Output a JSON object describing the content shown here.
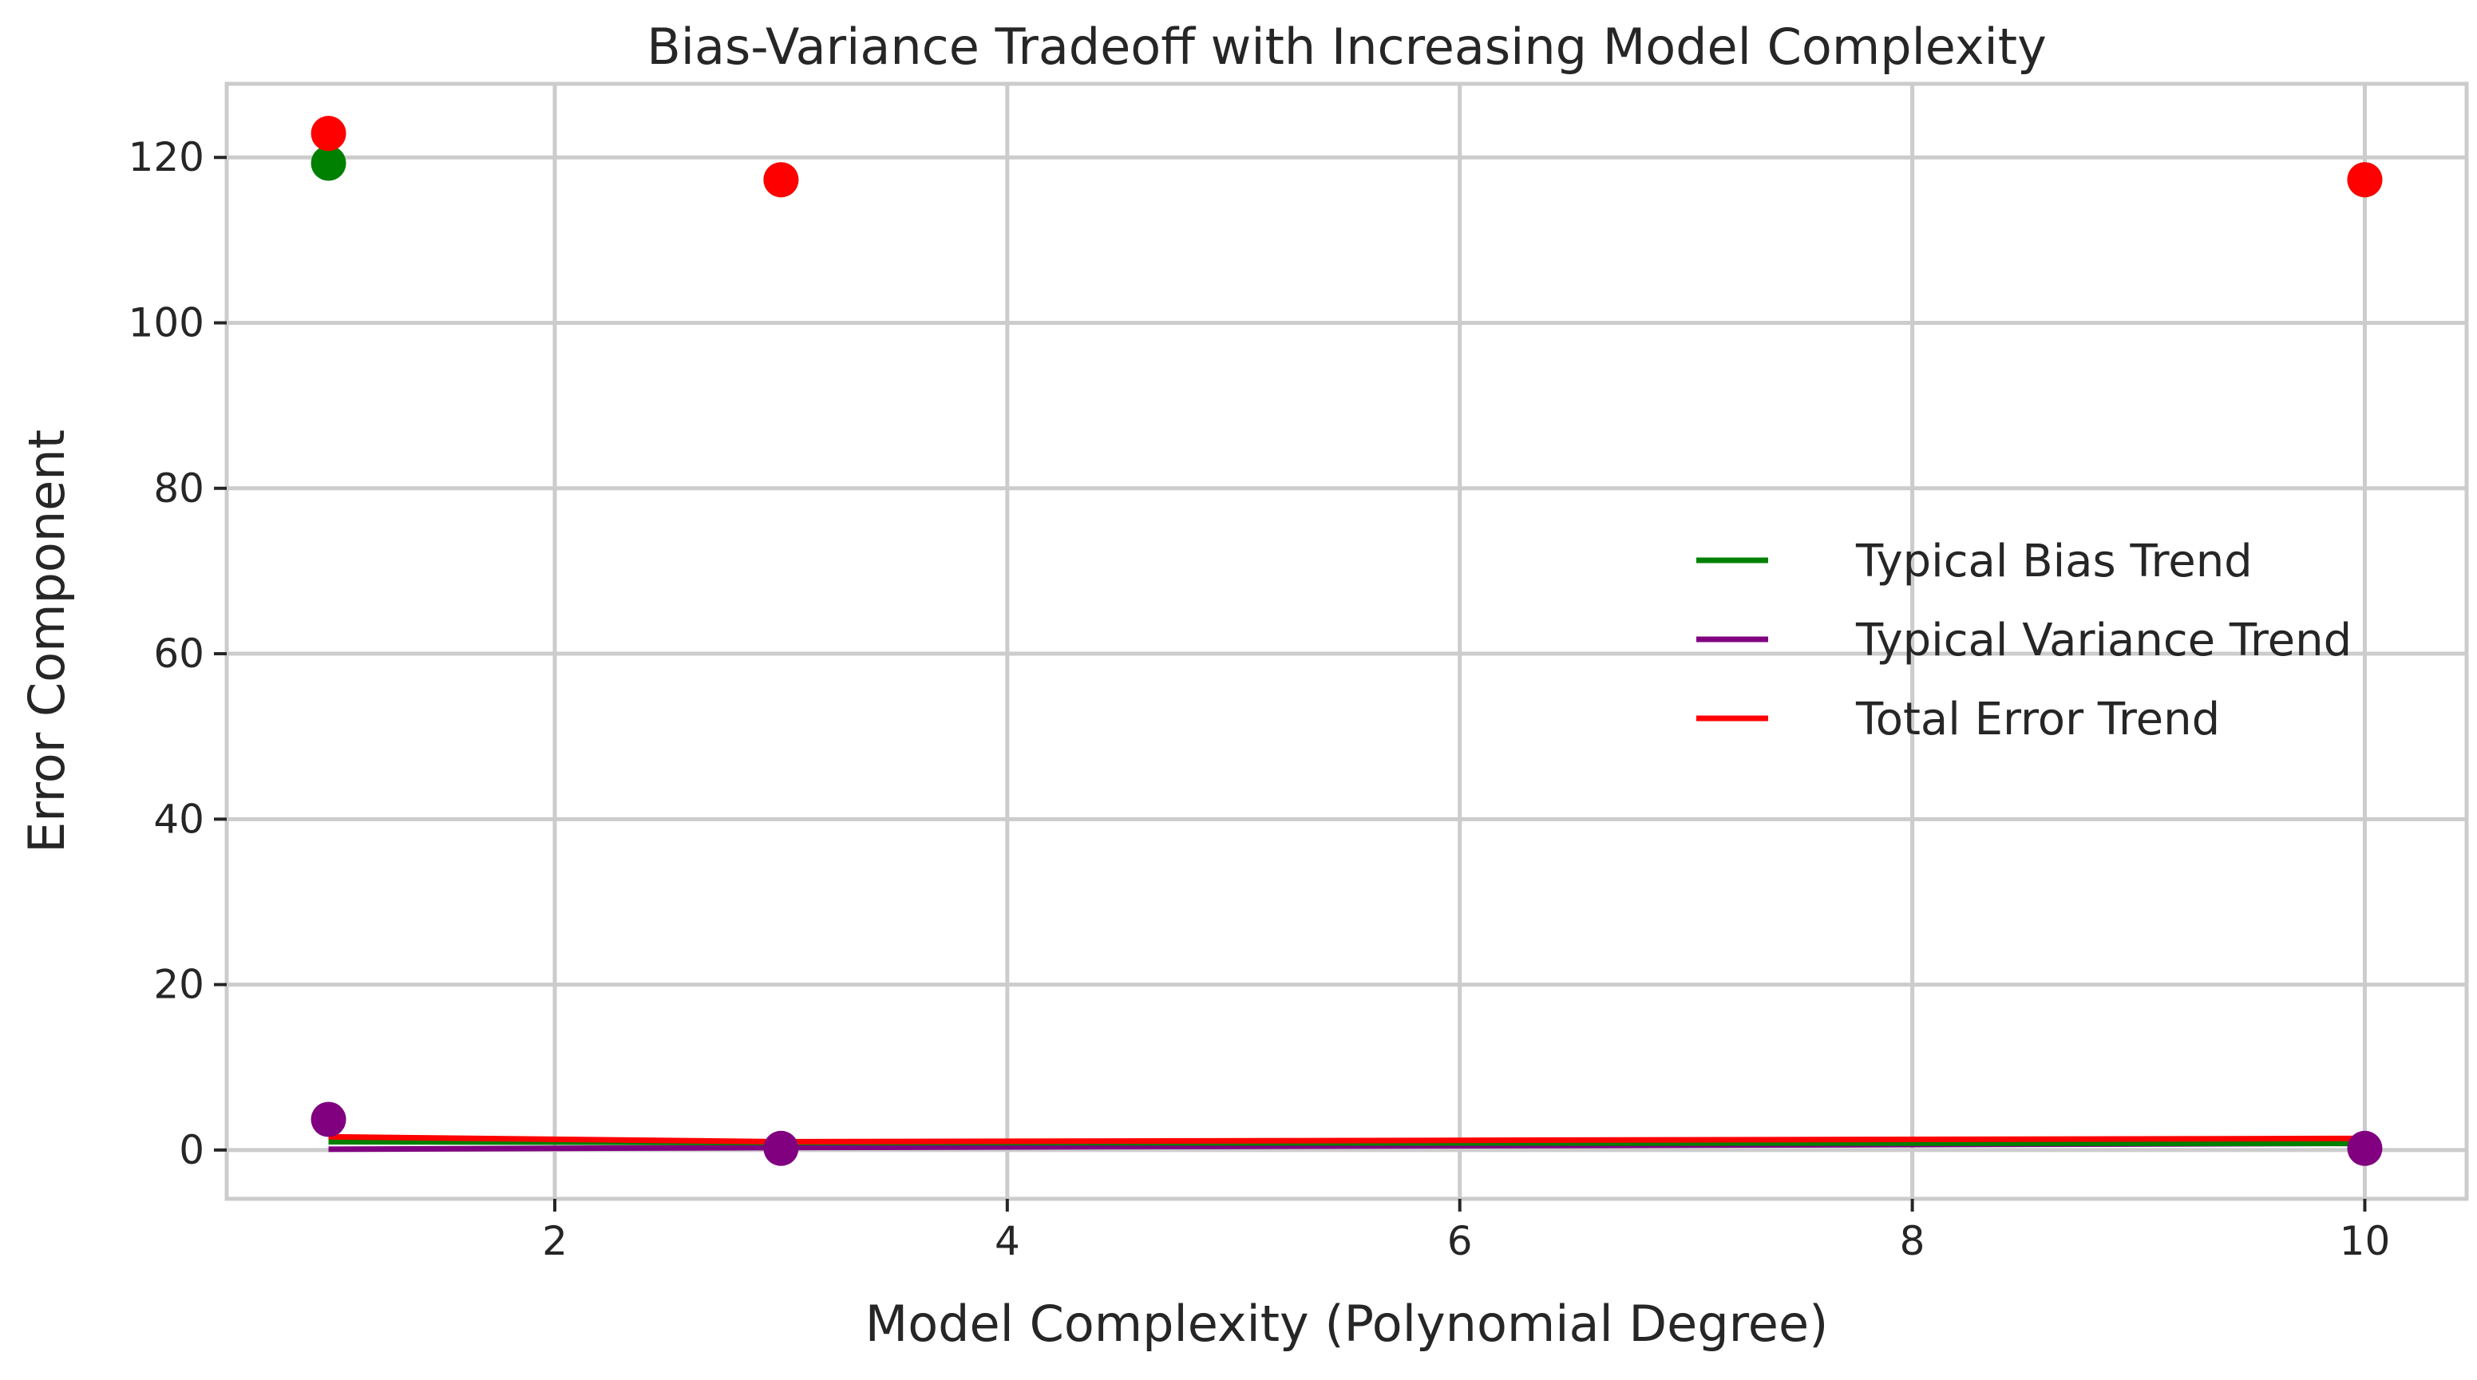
{
  "chart_data": {
    "type": "line",
    "title": "Bias-Variance Tradeoff with Increasing Model Complexity",
    "xlabel": "Model Complexity (Polynomial Degree)",
    "ylabel": "Error Component",
    "xlim": [
      0.55,
      10.45
    ],
    "ylim": [
      -5.9,
      128.9
    ],
    "xticks": [
      2,
      4,
      6,
      8,
      10
    ],
    "yticks": [
      0,
      20,
      40,
      60,
      80,
      100,
      120
    ],
    "grid": true,
    "legend_position": "center-right",
    "series": [
      {
        "name": "Typical Bias Trend",
        "color": "#008000",
        "x": [
          1,
          3,
          10
        ],
        "line_y": [
          1.0,
          0.9,
          0.8
        ],
        "points": [
          119.3,
          117.3,
          117.3
        ]
      },
      {
        "name": "Typical Variance Trend",
        "color": "#800080",
        "x": [
          1,
          3,
          10
        ],
        "line_y": [
          0.1,
          0.3,
          0.8
        ],
        "points": [
          3.7,
          0.2,
          0.2
        ]
      },
      {
        "name": "Total Error Trend",
        "color": "#ff0000",
        "x": [
          1,
          3,
          10
        ],
        "line_y": [
          1.6,
          1.0,
          1.4
        ],
        "points": [
          122.9,
          117.3,
          117.3
        ]
      }
    ]
  }
}
